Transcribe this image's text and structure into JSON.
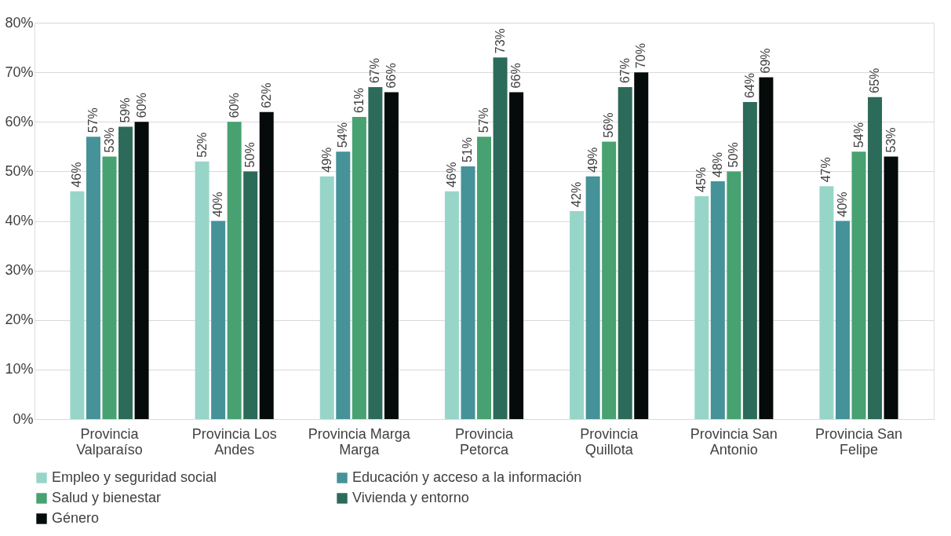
{
  "chart_data": {
    "type": "bar",
    "categories": [
      "Provincia Valparaíso",
      "Provincia Los Andes",
      "Provincia Marga Marga",
      "Provincia Petorca",
      "Provincia Quillota",
      "Provincia San Antonio",
      "Provincia San Felipe"
    ],
    "series": [
      {
        "name": "Empleo y seguridad social",
        "color": "#98d5c9",
        "values": [
          46,
          52,
          49,
          46,
          42,
          45,
          47
        ],
        "value_labels": [
          "46%",
          "52%",
          "49%",
          "46%",
          "42%",
          "45%",
          "47%"
        ]
      },
      {
        "name": "Educación y acceso a la información",
        "color": "#459299",
        "values": [
          57,
          40,
          54,
          51,
          49,
          48,
          40
        ],
        "value_labels": [
          "57%",
          "40%",
          "54%",
          "51%",
          "49%",
          "48%",
          "40%"
        ]
      },
      {
        "name": "Salud y bienestar",
        "color": "#48a171",
        "values": [
          53,
          60,
          61,
          57,
          56,
          50,
          54
        ],
        "value_labels": [
          "53%",
          "60%",
          "61%",
          "57%",
          "56%",
          "50%",
          "54%"
        ]
      },
      {
        "name": "Vivienda y entorno",
        "color": "#2c6a59",
        "values": [
          59,
          50,
          67,
          73,
          67,
          64,
          65
        ],
        "value_labels": [
          "59%",
          "50%",
          "67%",
          "73%",
          "67%",
          "64%",
          "65%"
        ]
      },
      {
        "name": "Género",
        "color": "#050b0a",
        "values": [
          60,
          62,
          66,
          66,
          70,
          69,
          53
        ],
        "value_labels": [
          "60%",
          "62%",
          "66%",
          "66%",
          "70%",
          "69%",
          "53%"
        ]
      }
    ],
    "ylim": [
      0,
      80
    ],
    "yticks": [
      {
        "value": 0,
        "label": "0%"
      },
      {
        "value": 10,
        "label": "10%"
      },
      {
        "value": 20,
        "label": "20%"
      },
      {
        "value": 30,
        "label": "30%"
      },
      {
        "value": 40,
        "label": "40%"
      },
      {
        "value": 50,
        "label": "50%"
      },
      {
        "value": 60,
        "label": "60%"
      },
      {
        "value": 70,
        "label": "70%"
      },
      {
        "value": 80,
        "label": "80%"
      }
    ],
    "grid": "y",
    "legend": "bottom"
  }
}
